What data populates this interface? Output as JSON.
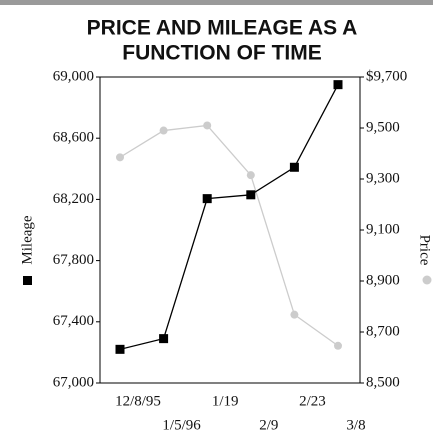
{
  "chart_data": {
    "type": "line",
    "title_lines": [
      "PRICE AND MILEAGE AS A",
      "FUNCTION OF TIME"
    ],
    "ylabel": "Mileage",
    "y2label": "Price",
    "categories": [
      "12/8/95",
      "1/5/96",
      "1/19",
      "2/9",
      "2/23",
      "3/8"
    ],
    "series": [
      {
        "name": "Mileage",
        "color": "#000000",
        "marker": "square",
        "axis": "y",
        "values": [
          67220,
          67290,
          68205,
          68230,
          68410,
          68950
        ]
      },
      {
        "name": "Price",
        "color": "#cccccc",
        "marker": "circle",
        "axis": "y2",
        "values": [
          9385,
          9490,
          9510,
          9315,
          8768,
          8646
        ]
      }
    ],
    "ylim": [
      67000,
      69000
    ],
    "yticks": [
      {
        "value": 67000,
        "label": "67,000"
      },
      {
        "value": 67400,
        "label": "67,400"
      },
      {
        "value": 67800,
        "label": "67,800"
      },
      {
        "value": 68200,
        "label": "68,200"
      },
      {
        "value": 68600,
        "label": "68,600"
      },
      {
        "value": 69000,
        "label": "69,000"
      }
    ],
    "y2lim": [
      8500,
      9700
    ],
    "y2ticks": [
      {
        "value": 8500,
        "label": "8,500"
      },
      {
        "value": 8700,
        "label": "8,700"
      },
      {
        "value": 8900,
        "label": "8,900"
      },
      {
        "value": 9100,
        "label": "9,100"
      },
      {
        "value": 9300,
        "label": "9,300"
      },
      {
        "value": 9500,
        "label": "9,500"
      },
      {
        "value": 9700,
        "label": "$9,700"
      }
    ],
    "grid": false
  }
}
